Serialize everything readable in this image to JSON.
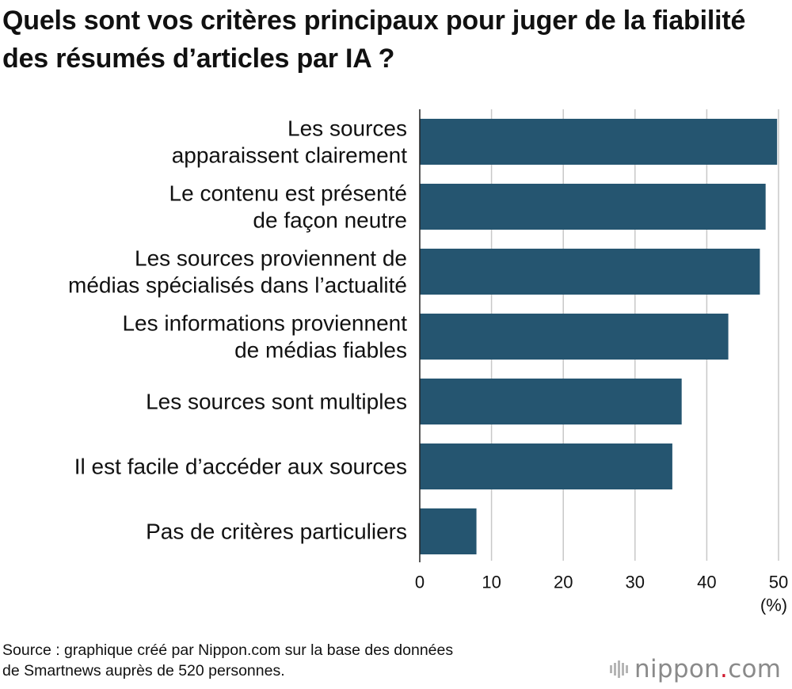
{
  "title": "Quels sont vos critères principaux pour juger de la fiabilité des résumés d’articles par IA ?",
  "source_lines": [
    "Source : graphique créé par Nippon.com sur la base des données",
    "de Smartnews auprès de 520 personnes."
  ],
  "logo": {
    "name": "nippon",
    "dot": ".",
    "suffix": "com"
  },
  "colors": {
    "bar": "#255570",
    "grid": "#c8c8c8",
    "axis": "#222222",
    "logo_gray": "#8a8a8a",
    "logo_red": "#d0182e"
  },
  "chart_data": {
    "type": "bar",
    "orientation": "horizontal",
    "categories": [
      [
        "Les sources",
        "apparaissent clairement"
      ],
      [
        "Le contenu est présenté",
        "de façon neutre"
      ],
      [
        "Les sources proviennent de",
        "médias spécialisés dans l’actualité"
      ],
      [
        "Les informations proviennent",
        "de médias fiables"
      ],
      [
        "Les sources sont multiples"
      ],
      [
        "Il est facile d’accéder aux sources"
      ],
      [
        "Pas de critères particuliers"
      ]
    ],
    "values": [
      49.8,
      48.2,
      47.4,
      43.0,
      36.5,
      35.2,
      7.9
    ],
    "xlim": [
      0,
      50
    ],
    "ticks": [
      "0",
      "10",
      "20",
      "30",
      "40",
      "50"
    ],
    "unit": "(%)",
    "grid": true
  }
}
